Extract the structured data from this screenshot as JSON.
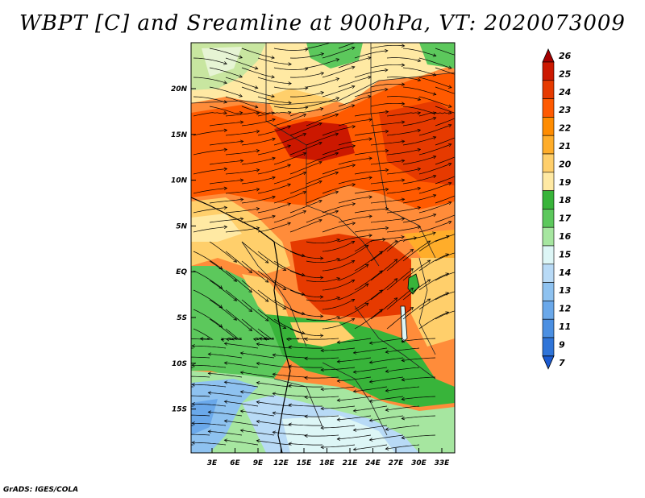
{
  "title": "WBPT [C] and Sreamline at 900hPa, VT: 2020073009",
  "credit": "GrADS: IGES/COLA",
  "map": {
    "lat_labels": [
      "20N",
      "15N",
      "10N",
      "5N",
      "EQ",
      "5S",
      "10S",
      "15S"
    ],
    "lon_labels": [
      "3E",
      "6E",
      "9E",
      "12E",
      "15E",
      "18E",
      "21E",
      "24E",
      "27E",
      "30E",
      "33E"
    ],
    "fields": [
      "wet-bulb potential temperature",
      "streamlines"
    ]
  },
  "colorbar": {
    "labels": [
      "26",
      "25",
      "24",
      "23",
      "22",
      "21",
      "20",
      "19",
      "18",
      "17",
      "16",
      "15",
      "14",
      "13",
      "12",
      "11",
      "9",
      "7"
    ],
    "colors": [
      "#a50000",
      "#cc1800",
      "#e63a00",
      "#ff5a00",
      "#ff8c00",
      "#ffad2a",
      "#ffcf6b",
      "#ffe9a3",
      "#38b43a",
      "#5cc85c",
      "#a6e6a0",
      "#ddf6f6",
      "#b8daf6",
      "#8ec2f0",
      "#6aa8ea",
      "#4b8fe2",
      "#2f74d8",
      "#1a5ad0"
    ]
  }
}
